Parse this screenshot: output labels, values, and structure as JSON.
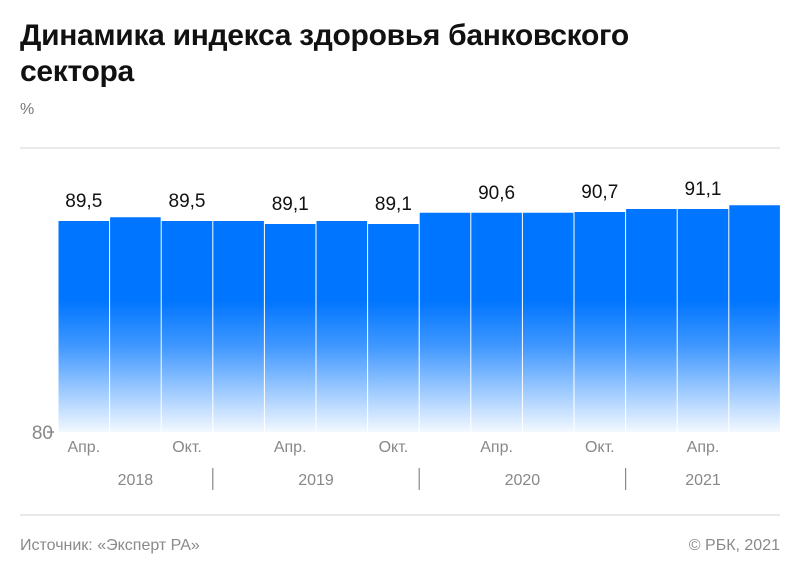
{
  "title": "Динамика индекса здоровья банковского сектора",
  "unit": "%",
  "footer": {
    "source": "Источник: «Эксперт РА»",
    "copyright": "© РБК, 2021"
  },
  "chart_data": {
    "type": "bar",
    "title": "Динамика индекса здоровья банковского сектора",
    "ylabel": "%",
    "ylim": [
      80,
      92.5
    ],
    "y_ticks": [
      "80"
    ],
    "grid": "top line only",
    "bar_color": "#0075FF",
    "categories": [
      "Апр.",
      "",
      "Окт.",
      "",
      "Апр.",
      "",
      "Окт.",
      "",
      "Апр.",
      "",
      "Окт.",
      "",
      "Апр.",
      ""
    ],
    "values": [
      89.5,
      90.0,
      89.5,
      89.5,
      89.1,
      89.5,
      89.1,
      90.6,
      90.6,
      90.6,
      90.7,
      91.1,
      91.1,
      91.6
    ],
    "data_labels": [
      "89,5",
      "",
      "89,5",
      "",
      "89,1",
      "",
      "89,1",
      "",
      "90,6",
      "",
      "90,7",
      "",
      "91,1",
      ""
    ],
    "years": [
      {
        "label": "2018",
        "start": 0,
        "end": 2
      },
      {
        "label": "2019",
        "start": 3,
        "end": 6
      },
      {
        "label": "2020",
        "start": 7,
        "end": 10
      },
      {
        "label": "2021",
        "start": 11,
        "end": 13
      }
    ]
  }
}
